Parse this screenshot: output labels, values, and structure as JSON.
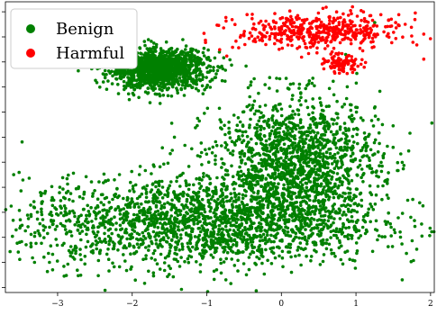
{
  "chart_data": {
    "type": "scatter",
    "title": "",
    "xlabel": "",
    "ylabel": "",
    "xlim": [
      -3.7,
      2.05
    ],
    "ylim": [
      -3.6,
      2.2
    ],
    "x_ticks": [
      -3,
      -2,
      -1,
      0,
      1,
      2
    ],
    "grid": false,
    "legend": {
      "placement": "top-left",
      "entries": [
        "Benign",
        "Harmful"
      ]
    },
    "series": [
      {
        "name": "Benign",
        "color": "#008000",
        "clusters": [
          {
            "center": [
              -1.65,
              0.85
            ],
            "spread": [
              0.33,
              0.2
            ],
            "count": 1300
          },
          {
            "center": [
              0.2,
              -1.0
            ],
            "spread": [
              0.55,
              0.65
            ],
            "count": 1500
          },
          {
            "center": [
              -1.1,
              -2.2
            ],
            "spread": [
              1.2,
              0.45
            ],
            "count": 2000
          }
        ]
      },
      {
        "name": "Harmful",
        "color": "#ff0000",
        "clusters": [
          {
            "center": [
              0.5,
              1.6
            ],
            "spread": [
              0.55,
              0.18
            ],
            "count": 480
          },
          {
            "center": [
              0.82,
              0.95
            ],
            "spread": [
              0.12,
              0.08
            ],
            "count": 90
          }
        ]
      }
    ]
  }
}
